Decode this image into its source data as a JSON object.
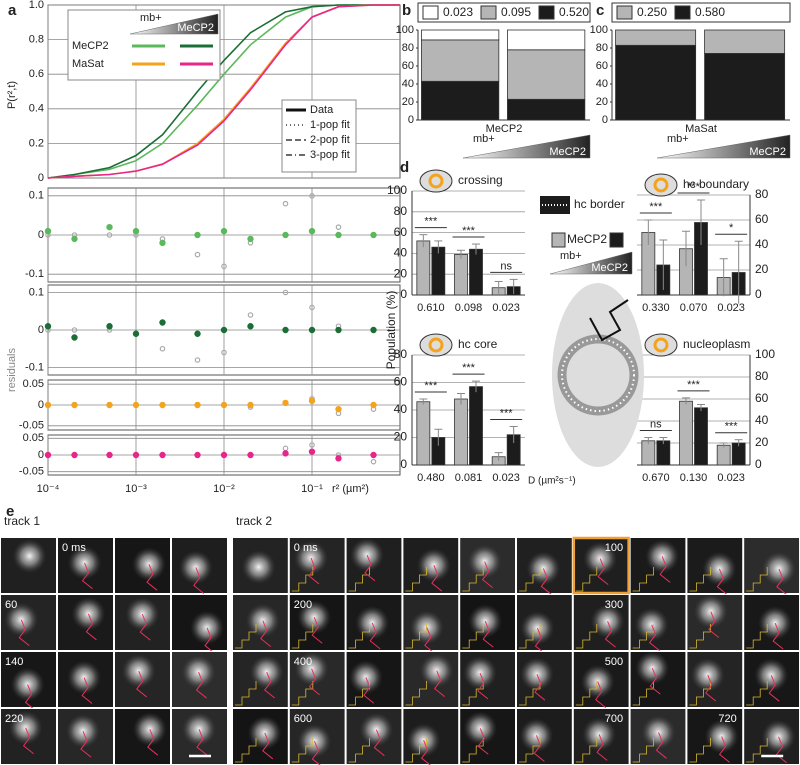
{
  "chart_data": [
    {
      "type": "line",
      "label": "a",
      "ylabel": "P(r²,t)",
      "xlabel": "r² (µm²)",
      "log_x": true,
      "grid": true,
      "xlim": [
        0.0001,
        1
      ],
      "xticks": [
        {
          "value": 0.0001,
          "label": "10⁻⁴"
        },
        {
          "value": 0.001,
          "label": "10⁻³"
        },
        {
          "value": 0.01,
          "label": "10⁻²"
        },
        {
          "value": 0.1,
          "label": "10⁻¹"
        }
      ],
      "ylim": [
        0,
        1
      ],
      "yticks": [
        0,
        0.2,
        0.4,
        0.6,
        0.8,
        {
          "value": 1,
          "label": "1.0"
        }
      ],
      "legend": {
        "header": [
          "mb+",
          "MeCP2"
        ],
        "rows": [
          "MeCP2",
          "MaSat"
        ],
        "styles": [
          "Data",
          "1-pop fit",
          "2-pop fit",
          "3-pop fit"
        ]
      },
      "x": [
        0.0001,
        0.0002,
        0.0005,
        0.001,
        0.002,
        0.005,
        0.01,
        0.02,
        0.05,
        0.1,
        0.2,
        0.5,
        1
      ],
      "series": [
        {
          "color": "#5cb85c",
          "values": [
            0,
            0.02,
            0.05,
            0.1,
            0.2,
            0.42,
            0.6,
            0.77,
            0.93,
            0.99,
            1,
            1,
            1
          ]
        },
        {
          "color": "#1b6e36",
          "values": [
            0,
            0.02,
            0.06,
            0.13,
            0.25,
            0.5,
            0.68,
            0.84,
            0.96,
            0.99,
            1,
            1,
            1
          ]
        },
        {
          "color": "#f4a41c",
          "values": [
            0,
            0.01,
            0.02,
            0.04,
            0.08,
            0.2,
            0.34,
            0.52,
            0.78,
            0.93,
            0.99,
            1,
            1
          ]
        },
        {
          "color": "#e8268a",
          "values": [
            0,
            0.01,
            0.02,
            0.04,
            0.08,
            0.19,
            0.33,
            0.51,
            0.77,
            0.93,
            0.99,
            1,
            1
          ]
        }
      ]
    },
    {
      "type": "scatter",
      "ylim": [
        -0.12,
        0.12
      ],
      "yticks": [
        -0.1,
        0,
        0.1
      ],
      "x": [
        0.0001,
        0.0002,
        0.0005,
        0.001,
        0.002,
        0.005,
        0.01,
        0.02,
        0.05,
        0.1,
        0.2,
        0.5
      ],
      "series": [
        {
          "color": "#5cb85c",
          "values": [
            0.01,
            -0.01,
            0.02,
            0.01,
            -0.02,
            0,
            0.01,
            -0.01,
            0,
            0.01,
            0,
            0
          ]
        },
        {
          "color": "#aaaaaa",
          "values": [
            0,
            0,
            0,
            0,
            -0.01,
            -0.05,
            -0.08,
            -0.02,
            0.08,
            0.1,
            0.02,
            0
          ]
        }
      ]
    },
    {
      "type": "scatter",
      "ylim": [
        -0.12,
        0.12
      ],
      "yticks": [
        -0.1,
        0,
        0.1
      ],
      "x": [
        0.0001,
        0.0002,
        0.0005,
        0.001,
        0.002,
        0.005,
        0.01,
        0.02,
        0.05,
        0.1,
        0.2,
        0.5
      ],
      "series": [
        {
          "color": "#1b6e36",
          "values": [
            0.01,
            -0.02,
            0.01,
            -0.01,
            0.02,
            -0.01,
            0,
            0.01,
            0,
            0,
            0,
            0
          ]
        },
        {
          "color": "#aaaaaa",
          "values": [
            0,
            0,
            0,
            -0.01,
            -0.05,
            -0.08,
            -0.06,
            0.04,
            0.1,
            0.06,
            0.01,
            0
          ]
        }
      ]
    },
    {
      "type": "scatter",
      "ylabel": "residuals",
      "ylim": [
        -0.06,
        0.06
      ],
      "yticks": [
        -0.05,
        0,
        0.05
      ],
      "x": [
        0.0001,
        0.0002,
        0.0005,
        0.001,
        0.002,
        0.005,
        0.01,
        0.02,
        0.05,
        0.1,
        0.2,
        0.5
      ],
      "series": [
        {
          "color": "#f4a41c",
          "values": [
            0,
            0,
            0,
            0,
            0,
            0,
            0,
            0,
            0.005,
            0.01,
            -0.01,
            0
          ]
        },
        {
          "color": "#aaaaaa",
          "values": [
            0,
            0,
            0,
            0,
            0,
            0,
            0,
            -0.005,
            0.005,
            0.015,
            -0.02,
            -0.01
          ]
        }
      ]
    },
    {
      "type": "scatter",
      "ylim": [
        -0.06,
        0.06
      ],
      "yticks": [
        -0.05,
        0,
        0.05
      ],
      "x": [
        0.0001,
        0.0002,
        0.0005,
        0.001,
        0.002,
        0.005,
        0.01,
        0.02,
        0.05,
        0.1,
        0.2,
        0.5
      ],
      "series": [
        {
          "color": "#e8268a",
          "values": [
            0,
            0,
            0,
            0,
            0,
            0,
            0,
            0,
            0.005,
            0.01,
            -0.01,
            0
          ]
        },
        {
          "color": "#aaaaaa",
          "values": [
            0,
            0,
            0,
            0,
            0,
            0,
            0,
            0,
            0.02,
            0.03,
            0,
            -0.02
          ]
        }
      ]
    },
    {
      "type": "stacked_bar",
      "label": "b",
      "xlabel": "MeCP2",
      "gradient": [
        "mb+",
        "MeCP2"
      ],
      "categories": [
        null,
        null
      ],
      "ylim": [
        0,
        100
      ],
      "yticks": [
        0,
        20,
        40,
        60,
        80,
        100
      ],
      "series": [
        {
          "name": "0.023",
          "color": "#ffffff",
          "values": [
            11,
            22
          ]
        },
        {
          "name": "0.095",
          "color": "#b5b5b5",
          "values": [
            46,
            55
          ]
        },
        {
          "name": "0.520",
          "color": "#1c1c1c",
          "values": [
            43,
            23
          ]
        }
      ]
    },
    {
      "type": "stacked_bar",
      "label": "c",
      "xlabel": "MaSat",
      "gradient": [
        "mb+",
        "MeCP2"
      ],
      "categories": [
        null,
        null
      ],
      "ylim": [
        0,
        100
      ],
      "yticks": [
        0,
        20,
        40,
        60,
        80,
        100
      ],
      "series": [
        {
          "name": "0.250",
          "color": "#b5b5b5",
          "values": [
            17,
            26
          ]
        },
        {
          "name": "0.580",
          "color": "#1c1c1c",
          "values": [
            83,
            74
          ]
        }
      ]
    },
    {
      "type": "grouped_bar",
      "label": "d",
      "title": "crossing",
      "ylabel": "Population (%)",
      "axis_side": "left",
      "legend": {
        "border": "hc border",
        "name": "MeCP2",
        "gradient": [
          "mb+",
          "MeCP2"
        ]
      },
      "categories": [
        "0.610",
        "0.098",
        "0.023"
      ],
      "ylim": [
        0,
        100
      ],
      "yticks": [
        0,
        20,
        40,
        60,
        80,
        100
      ],
      "significance": [
        "***",
        "***",
        "ns"
      ],
      "series": [
        {
          "color": "#b5b5b5",
          "values": [
            52,
            39,
            7
          ],
          "errors": [
            6,
            4,
            6
          ]
        },
        {
          "color": "#1c1c1c",
          "values": [
            46,
            44,
            8
          ],
          "errors": [
            6,
            5,
            7
          ]
        }
      ]
    },
    {
      "type": "grouped_bar",
      "title": "hc boundary",
      "axis_side": "right",
      "categories": [
        "0.330",
        "0.070",
        "0.023"
      ],
      "ylim": [
        0,
        80
      ],
      "yticks": [
        0,
        20,
        40,
        60,
        80
      ],
      "significance": [
        "***",
        "***",
        "*"
      ],
      "series": [
        {
          "color": "#b5b5b5",
          "values": [
            50,
            37,
            14
          ],
          "errors": [
            10,
            14,
            15
          ]
        },
        {
          "color": "#1c1c1c",
          "values": [
            24,
            58,
            18
          ],
          "errors": [
            20,
            18,
            25
          ]
        }
      ]
    },
    {
      "type": "grouped_bar",
      "title": "hc core",
      "xlabel": "D (µm²s⁻¹)",
      "axis_side": "left",
      "categories": [
        "0.480",
        "0.081",
        "0.023"
      ],
      "ylim": [
        0,
        80
      ],
      "yticks": [
        0,
        20,
        40,
        60,
        80
      ],
      "significance": [
        "***",
        "***",
        "***"
      ],
      "series": [
        {
          "color": "#b5b5b5",
          "values": [
            46,
            48,
            6
          ],
          "errors": [
            2,
            4,
            3
          ]
        },
        {
          "color": "#1c1c1c",
          "values": [
            20,
            57,
            22
          ],
          "errors": [
            6,
            4,
            6
          ]
        }
      ]
    },
    {
      "type": "grouped_bar",
      "title": "nucleoplasm",
      "axis_side": "right",
      "categories": [
        "0.670",
        "0.130",
        "0.023"
      ],
      "ylim": [
        0,
        100
      ],
      "yticks": [
        0,
        20,
        40,
        60,
        80,
        100
      ],
      "significance": [
        "ns",
        "***",
        "***"
      ],
      "series": [
        {
          "color": "#b5b5b5",
          "values": [
            22,
            58,
            18
          ],
          "errors": [
            3,
            3,
            2
          ]
        },
        {
          "color": "#1c1c1c",
          "values": [
            22,
            52,
            20
          ],
          "errors": [
            3,
            3,
            3
          ]
        }
      ]
    }
  ],
  "panel_e": {
    "label": "e",
    "tracks": [
      {
        "title": "track 1",
        "times": [
          "0 ms",
          "60",
          "140",
          "220"
        ]
      },
      {
        "title": "track 2",
        "times": [
          "0 ms",
          "100",
          "200",
          "300",
          "400",
          "500",
          "600",
          "700",
          "720"
        ]
      }
    ]
  }
}
